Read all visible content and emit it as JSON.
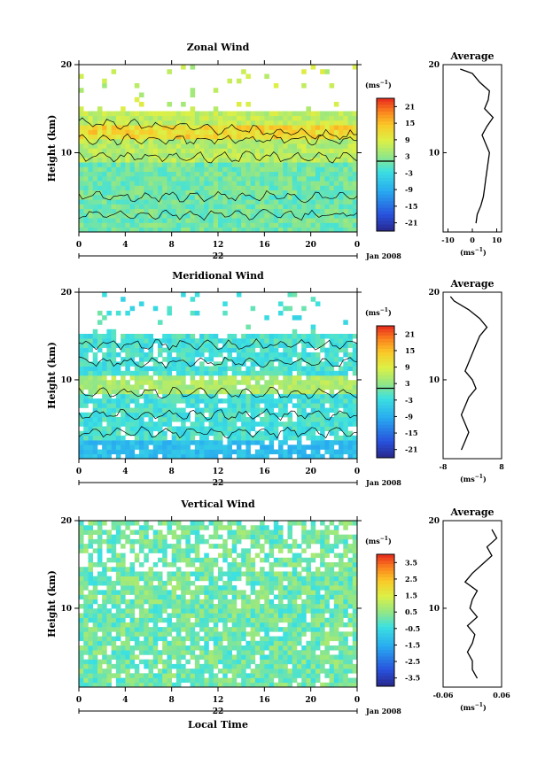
{
  "chart_data": [
    {
      "type": "heatmap",
      "title": "Zonal Wind",
      "ylabel": "Height (km)",
      "yticks": [
        "20",
        "10"
      ],
      "ylim": [
        1,
        20
      ],
      "xticks": [
        "0",
        "4",
        "8",
        "12",
        "16",
        "20",
        "0"
      ],
      "xlim": [
        0,
        24
      ],
      "date_day": "22",
      "date_suffix": "Jan 2008",
      "colorbar": {
        "unit_base": "(ms",
        "unit_exp": "−1",
        "unit_close": ")",
        "ticks": [
          "21",
          "15",
          "9",
          "3",
          "-3",
          "-9",
          "-15",
          "-21"
        ],
        "range": [
          -24,
          24
        ]
      },
      "profile": {
        "title": "Average",
        "yticks": [
          "20",
          "10"
        ],
        "xticks": [
          "-10",
          "0",
          "10"
        ],
        "xlim": [
          -12,
          12
        ],
        "xlabel_base": "(ms",
        "xlabel_exp": "−1",
        "xlabel_close": ")",
        "heights": [
          2,
          3,
          4,
          5,
          6,
          7,
          8,
          9,
          10,
          11,
          12,
          13,
          14,
          15,
          16,
          17,
          18,
          19,
          19.5
        ],
        "values": [
          1.5,
          2,
          3.5,
          4.5,
          5,
          5.5,
          6,
          6.5,
          7,
          5.5,
          4,
          6,
          8.5,
          5,
          6.5,
          7,
          3,
          0,
          -5
        ]
      }
    },
    {
      "type": "heatmap",
      "title": "Meridional Wind",
      "ylabel": "Height (km)",
      "yticks": [
        "20",
        "10"
      ],
      "ylim": [
        1,
        20
      ],
      "xticks": [
        "0",
        "4",
        "8",
        "12",
        "16",
        "20",
        "0"
      ],
      "xlim": [
        0,
        24
      ],
      "date_day": "22",
      "date_suffix": "Jan 2008",
      "colorbar": {
        "unit_base": "(ms",
        "unit_exp": "−1",
        "unit_close": ")",
        "ticks": [
          "21",
          "15",
          "9",
          "3",
          "-3",
          "-9",
          "-15",
          "-21"
        ],
        "range": [
          -24,
          24
        ]
      },
      "profile": {
        "title": "Average",
        "yticks": [
          "20",
          "10"
        ],
        "xticks": [
          "-8",
          "8"
        ],
        "xlim": [
          -8,
          8
        ],
        "xlabel_base": "(ms",
        "xlabel_exp": "−1",
        "xlabel_close": ")",
        "heights": [
          2,
          3,
          4,
          5,
          6,
          7,
          8,
          9,
          10,
          11,
          12,
          13,
          14,
          15,
          16,
          17,
          18,
          19,
          19.5
        ],
        "values": [
          -3,
          -2,
          -1,
          -2,
          -3,
          -2,
          -1,
          1,
          0,
          -2,
          -1,
          0,
          1,
          2,
          4,
          2,
          -1,
          -5,
          -6
        ]
      }
    },
    {
      "type": "heatmap",
      "title": "Vertical Wind",
      "ylabel": "Height (km)",
      "yticks": [
        "20",
        "10"
      ],
      "ylim": [
        1,
        20
      ],
      "xticks": [
        "0",
        "4",
        "8",
        "12",
        "16",
        "20",
        "0"
      ],
      "xlim": [
        0,
        24
      ],
      "date_day": "22",
      "date_suffix": "Jan 2008",
      "xlabel": "Local Time",
      "colorbar": {
        "unit_base": "(ms",
        "unit_exp": "−1",
        "unit_close": ")",
        "ticks": [
          "3.5",
          "2.5",
          "1.5",
          "0.5",
          "-0.5",
          "-1.5",
          "-2.5",
          "-3.5"
        ],
        "range": [
          -4,
          4
        ]
      },
      "profile": {
        "title": "Average",
        "yticks": [
          "20",
          "10"
        ],
        "xticks": [
          "-0.06",
          "0.06"
        ],
        "xlim": [
          -0.06,
          0.06
        ],
        "xlabel_base": "(ms",
        "xlabel_exp": "−1",
        "xlabel_close": ")",
        "heights": [
          2,
          3,
          4,
          5,
          6,
          7,
          8,
          9,
          10,
          11,
          12,
          13,
          14,
          15,
          16,
          17,
          18,
          19
        ],
        "values": [
          0.01,
          0,
          0,
          -0.01,
          0,
          0.005,
          -0.01,
          0.01,
          -0.005,
          0,
          0.01,
          -0.015,
          0,
          0.02,
          0.04,
          0.03,
          0.05,
          0.04
        ]
      }
    }
  ]
}
